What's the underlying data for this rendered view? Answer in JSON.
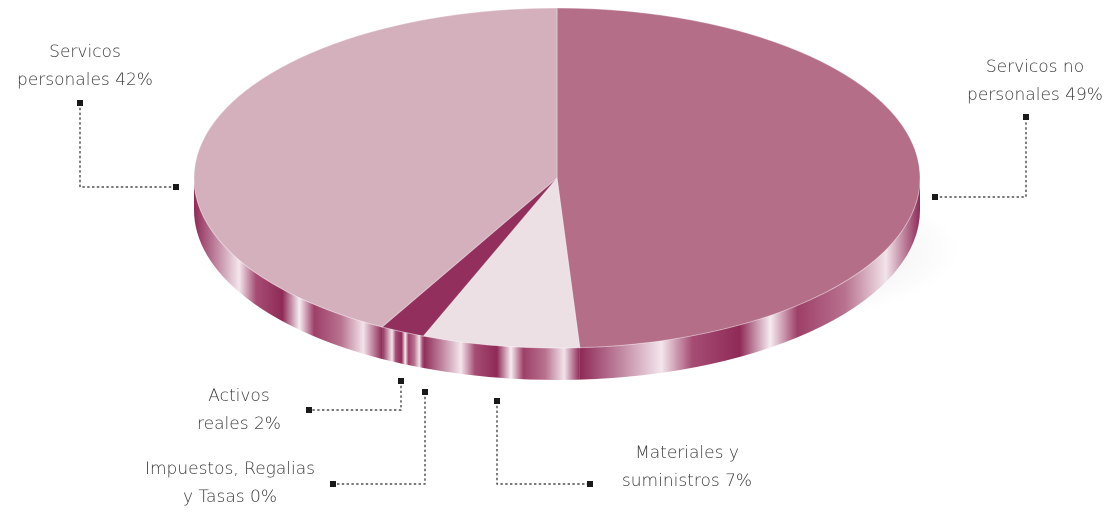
{
  "chart_data": {
    "type": "pie",
    "style": "3d-tilted",
    "title": "",
    "slices": [
      {
        "label_lines": [
          "Servicos no",
          "personales 49%"
        ],
        "value": 49,
        "color": "#b46e87",
        "side": "#9a3b63"
      },
      {
        "label_lines": [
          "Materiales y",
          "suministros 7%"
        ],
        "value": 7,
        "color": "#ece0e4",
        "side": "#a54d72"
      },
      {
        "label_lines": [
          "Impuestos, Regalias",
          "y Tasas 0%"
        ],
        "value": 0,
        "color": "#8f2a56",
        "side": "#7e2249"
      },
      {
        "label_lines": [
          "Activos",
          "reales 2%"
        ],
        "value": 2,
        "color": "#922f5c",
        "side": "#86264f"
      },
      {
        "label_lines": [
          "Servicos",
          "personales 42%"
        ],
        "value": 42,
        "color": "#d4b0bc",
        "side": "#a54d72"
      }
    ]
  }
}
